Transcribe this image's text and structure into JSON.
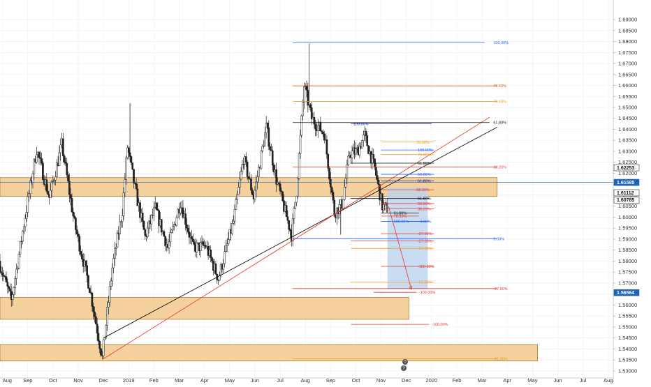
{
  "app": {
    "colors": {
      "background": "#ffffff",
      "grid": "#eeeeee",
      "zone_fill": "#f2c98c",
      "zone_stroke": "#8a5a10",
      "candle": "#222222",
      "trend_black": "#111111",
      "trend_red": "#e8432f",
      "fib_red": "#e53935",
      "fib_orange": "#ef9a23",
      "fib_blue": "#2962ff",
      "fib_navy": "#1a237e",
      "projection_fill": "#bcd4ef",
      "badge_blue": "#1e63b6"
    }
  },
  "chart_data": {
    "type": "candlestick",
    "instrument_scale": "price",
    "y_axis": {
      "ylim": [
        1.5268,
        1.6989
      ],
      "ticks": [
        "1.69000",
        "1.68500",
        "1.68000",
        "1.67500",
        "1.67000",
        "1.66500",
        "1.66000",
        "1.65500",
        "1.65000",
        "1.64500",
        "1.64000",
        "1.63500",
        "1.63000",
        "1.62500",
        "1.62000",
        "1.61500",
        "1.61000",
        "1.60500",
        "1.60000",
        "1.59500",
        "1.59000",
        "1.58500",
        "1.58000",
        "1.57500",
        "1.57000",
        "1.56500",
        "1.56000",
        "1.55500",
        "1.55000",
        "1.54500",
        "1.54000",
        "1.53500",
        "1.53000"
      ]
    },
    "x_axis": {
      "labels": [
        "Aug",
        "Sep",
        "Oct",
        "Nov",
        "Dec",
        "2019",
        "Feb",
        "Mar",
        "Apr",
        "May",
        "Jun",
        "Jul",
        "Aug",
        "Sep",
        "Oct",
        "Nov",
        "Dec",
        "2020",
        "Feb",
        "Mar",
        "Apr",
        "May",
        "Jun",
        "Jul",
        "Aug"
      ],
      "label_positions": [
        0.1,
        1.1,
        2.1,
        3.1,
        4.1,
        5.1,
        6.1,
        7.1,
        8.1,
        9.1,
        10.1,
        11.1,
        12.1,
        13.1,
        14.1,
        15.1,
        16.1,
        17.1,
        18.1,
        19.1,
        20.1,
        21.1,
        22.1,
        23.1,
        24.1
      ],
      "xlim": [
        0,
        24.3
      ]
    },
    "price_path": [
      [
        0,
        1.58
      ],
      [
        0.5,
        1.562
      ],
      [
        1.0,
        1.597
      ],
      [
        1.5,
        1.631
      ],
      [
        2.0,
        1.609
      ],
      [
        2.5,
        1.633
      ],
      [
        3.0,
        1.597
      ],
      [
        3.6,
        1.568
      ],
      [
        4.1,
        1.536
      ],
      [
        4.5,
        1.577
      ],
      [
        4.9,
        1.603
      ],
      [
        5.1,
        1.632
      ],
      [
        5.4,
        1.613
      ],
      [
        5.8,
        1.591
      ],
      [
        6.2,
        1.604
      ],
      [
        6.7,
        1.586
      ],
      [
        7.2,
        1.607
      ],
      [
        7.7,
        1.586
      ],
      [
        8.2,
        1.587
      ],
      [
        8.7,
        1.572
      ],
      [
        9.3,
        1.598
      ],
      [
        9.7,
        1.627
      ],
      [
        10.1,
        1.609
      ],
      [
        10.6,
        1.641
      ],
      [
        11.0,
        1.617
      ],
      [
        11.6,
        1.592
      ],
      [
        11.8,
        1.612
      ],
      [
        12.1,
        1.66
      ],
      [
        12.4,
        1.645
      ],
      [
        12.9,
        1.638
      ],
      [
        13.3,
        1.602
      ],
      [
        13.6,
        1.606
      ],
      [
        13.9,
        1.629
      ],
      [
        14.2,
        1.63
      ],
      [
        14.5,
        1.637
      ],
      [
        14.9,
        1.622
      ],
      [
        15.2,
        1.605
      ],
      [
        15.4,
        1.604
      ]
    ],
    "key_candles": {
      "high_spikes": [
        [
          5.15,
          1.652
        ],
        [
          12.25,
          1.679
        ]
      ],
      "low_spikes": [
        [
          4.1,
          1.5355
        ],
        [
          13.5,
          1.592
        ]
      ]
    },
    "zones": [
      {
        "name": "upper-zone",
        "y1": 1.618,
        "y2": 1.6095,
        "x1": 0,
        "x2": 19.7
      },
      {
        "name": "middle-zone",
        "y1": 1.5635,
        "y2": 1.5535,
        "x1": 0,
        "x2": 16.2
      },
      {
        "name": "lower-zone",
        "y1": 1.542,
        "y2": 1.5345,
        "x1": 0,
        "x2": 21.3
      }
    ],
    "trendlines": [
      {
        "name": "black-trendline",
        "color": "#111111",
        "from": [
          4.1,
          1.545
        ],
        "to": [
          19.7,
          1.641
        ]
      },
      {
        "name": "red-trendline",
        "color": "#e8432f",
        "from": [
          4.1,
          1.5355
        ],
        "to": [
          19.4,
          1.6455
        ]
      }
    ],
    "fib_levels": [
      {
        "y": 1.6796,
        "x1": 11.6,
        "x2": 19.2,
        "color": "#2962ff",
        "label": "100.00%",
        "lx": 19.55
      },
      {
        "y": 1.6598,
        "x1": 11.6,
        "x2": 19.7,
        "color": "#e65100",
        "label": "78.60%",
        "lx": 19.55
      },
      {
        "y": 1.6527,
        "x1": 11.6,
        "x2": 19.7,
        "color": "#ef9a23",
        "label": "70.60%",
        "lx": 19.55
      },
      {
        "y": 1.6431,
        "x1": 11.6,
        "x2": 19.4,
        "color": "#111111",
        "label": "61.80%",
        "lx": 19.55
      },
      {
        "y": 1.6425,
        "x1": 13.9,
        "x2": 17.1,
        "color": "#1a237e",
        "label": "100.00%",
        "lx": 14.0
      },
      {
        "y": 1.6342,
        "x1": 15.1,
        "x2": 17.2,
        "color": "#ef9a23",
        "label": "78.60%",
        "lx": 16.5
      },
      {
        "y": 1.6306,
        "x1": 15.1,
        "x2": 17.2,
        "color": "#2962ff",
        "label": "100.00%",
        "lx": 16.55
      },
      {
        "y": 1.6285,
        "x1": 15.1,
        "x2": 17.2,
        "color": "#ef9a23",
        "label": "70.60%",
        "lx": 16.55
      },
      {
        "y": 1.6246,
        "x1": 13.9,
        "x2": 17.2,
        "color": "#111111",
        "label": "61.80%",
        "lx": 16.55
      },
      {
        "y": 1.6228,
        "x1": 11.6,
        "x2": 19.7,
        "color": "#e53935",
        "label": "38.20%",
        "lx": 19.55
      },
      {
        "y": 1.6195,
        "x1": 15.1,
        "x2": 17.2,
        "color": "#2962ff",
        "label": "50.00%",
        "lx": 16.55
      },
      {
        "y": 1.6165,
        "x1": 15.1,
        "x2": 17.2,
        "color": "#1a237e",
        "label": "61.80%",
        "lx": 16.55
      },
      {
        "y": 1.6125,
        "x1": 15.1,
        "x2": 17.2,
        "color": "#e53935",
        "label": "38.20%",
        "lx": 16.5
      },
      {
        "y": 1.6085,
        "x1": 13.9,
        "x2": 17.0,
        "color": "#111111",
        "label": "61.80%",
        "lx": 16.55
      },
      {
        "y": 1.6062,
        "x1": 15.1,
        "x2": 17.2,
        "color": "#e53935",
        "label": "50.00%",
        "lx": 16.55
      },
      {
        "y": 1.6038,
        "x1": 15.1,
        "x2": 17.2,
        "color": "#e53935",
        "label": "38.20%",
        "lx": 16.55
      },
      {
        "y": 1.6019,
        "x1": 15.1,
        "x2": 16.6,
        "color": "#111111",
        "label": "61.80%",
        "lx": 15.6
      },
      {
        "y": 1.6005,
        "x1": 15.1,
        "x2": 16.6,
        "color": "#e53935",
        "label": "78.00%",
        "lx": 15.6
      },
      {
        "y": 1.5981,
        "x1": 15.1,
        "x2": 16.9,
        "color": "#2962ff",
        "label": "100.00%",
        "lx": 15.6
      },
      {
        "y": 1.5981,
        "x1": 16.1,
        "x2": 17.0,
        "color": "#2962ff",
        "label": "0.00%",
        "lx": 16.65
      },
      {
        "y": 1.5902,
        "x1": 11.6,
        "x2": 19.7,
        "color": "#2962ff",
        "label": "0.00%",
        "lx": 19.55
      },
      {
        "y": 1.5925,
        "x1": 15.1,
        "x2": 17.2,
        "color": "#e53935",
        "label": "-27.00%",
        "lx": 16.55
      },
      {
        "y": 1.5892,
        "x1": 13.9,
        "x2": 17.2,
        "color": "#e53935",
        "label": "-27.00%",
        "lx": 16.55
      },
      {
        "y": 1.5858,
        "x1": 13.9,
        "x2": 17.2,
        "color": "#ef9a23",
        "label": "-27.00%",
        "lx": 16.55
      },
      {
        "y": 1.5776,
        "x1": 15.1,
        "x2": 17.2,
        "color": "#e53935",
        "label": "-100.00%",
        "lx": 16.55
      },
      {
        "y": 1.5705,
        "x1": 13.9,
        "x2": 17.2,
        "color": "#ef9a23",
        "label": "-61.80%",
        "lx": 16.55
      },
      {
        "y": 1.5675,
        "x1": 11.6,
        "x2": 19.7,
        "color": "#e53935",
        "label": "-27.00%",
        "lx": 19.55
      },
      {
        "y": 1.5658,
        "x1": 14.8,
        "x2": 16.5,
        "color": "#e53935",
        "label": "-100.00%",
        "lx": 16.6
      },
      {
        "y": 1.5512,
        "x1": 13.9,
        "x2": 17.0,
        "color": "#e53935",
        "label": "-100.00%",
        "lx": 17.1
      },
      {
        "y": 1.5355,
        "x1": 11.6,
        "x2": 19.7,
        "color": "#ef9a23",
        "label": "-61.80%",
        "lx": 19.55
      }
    ],
    "projection": {
      "x1": 15.35,
      "x2": 16.95,
      "y_top": 1.6135,
      "y_bottom": 1.5672,
      "arrow_from": [
        15.4,
        1.6048
      ],
      "arrow_to": [
        16.3,
        1.5672
      ]
    },
    "price_badges": [
      {
        "y": 1.62253,
        "label": "1.62253",
        "bg": "#ffffff",
        "fg": "#111111",
        "stroke": "#333333"
      },
      {
        "y": 1.61585,
        "label": "1.61585",
        "bg": "#1e63b6",
        "fg": "#ffffff",
        "stroke": "#1e63b6"
      },
      {
        "y": 1.61112,
        "label": "1.61112",
        "bg": "#ffffff",
        "fg": "#111111",
        "stroke": "#333333"
      },
      {
        "y": 1.60785,
        "label": "1.60785",
        "bg": "#ffffff",
        "fg": "#111111",
        "stroke": "#333333"
      },
      {
        "y": 1.56564,
        "label": "1.56564",
        "bg": "#1e63b6",
        "fg": "#ffffff",
        "stroke": "#1e63b6"
      }
    ],
    "current_price_line": 1.61585
  }
}
